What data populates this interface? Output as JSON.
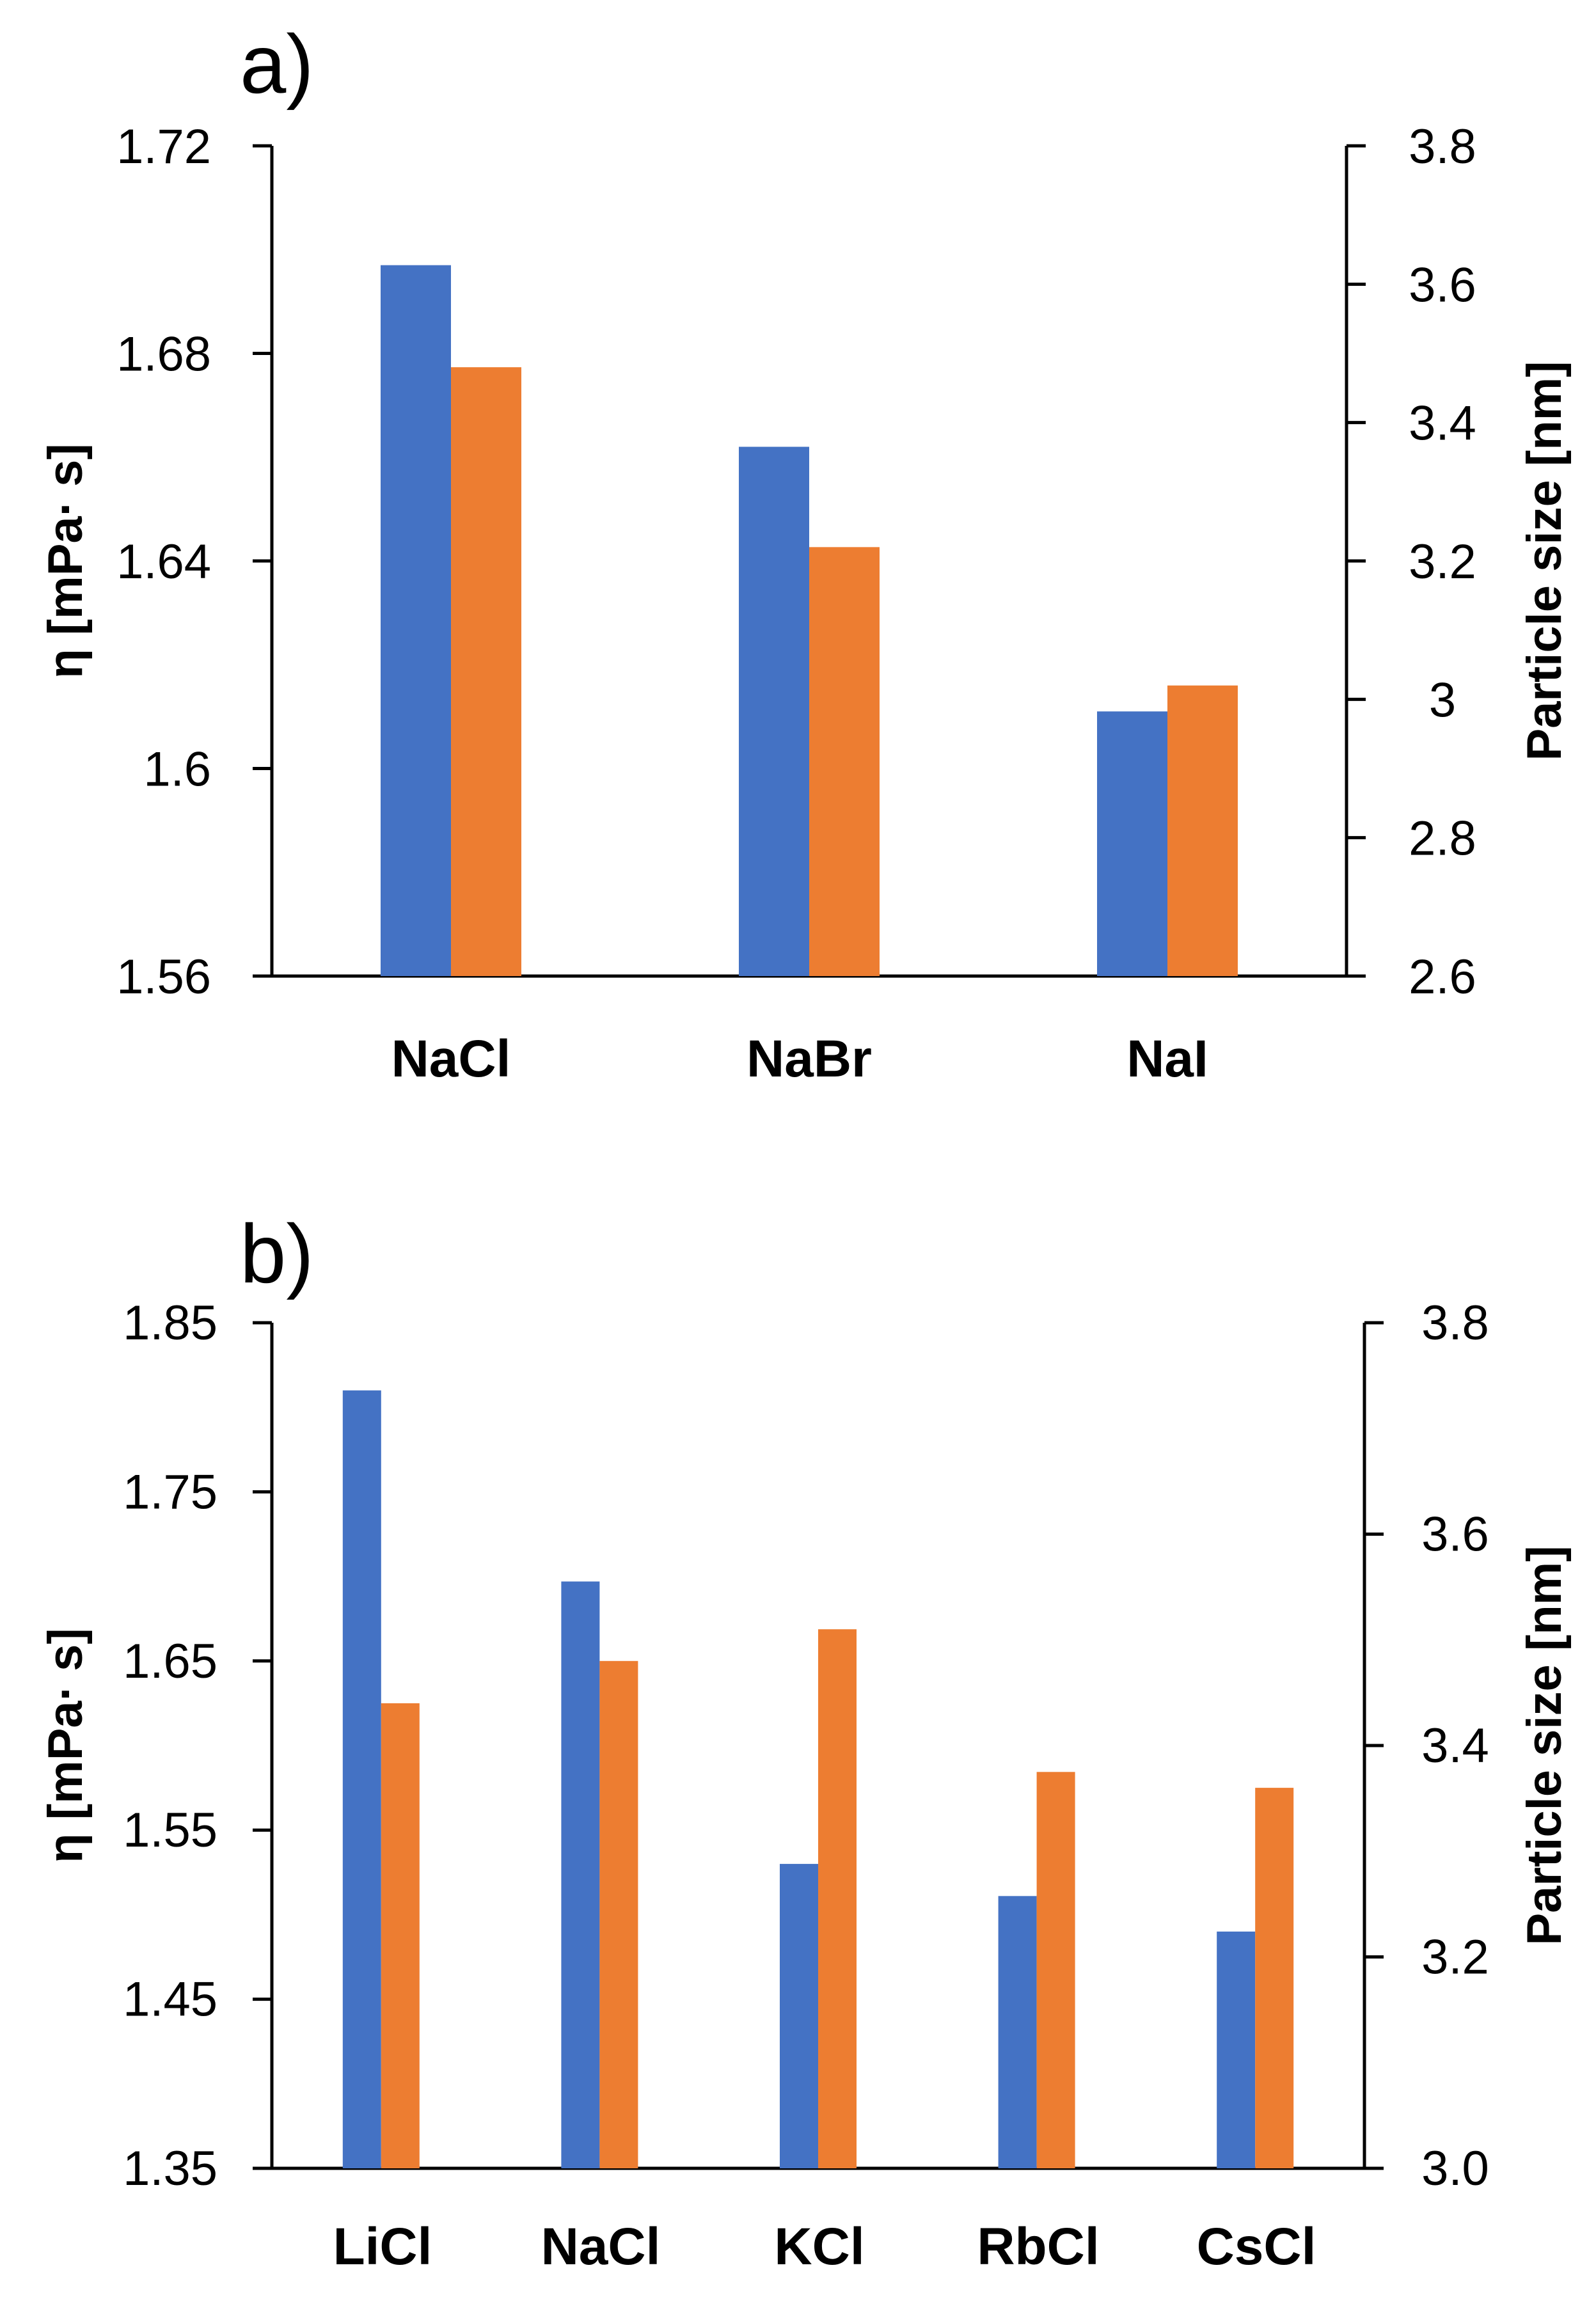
{
  "chart_data": [
    {
      "type": "bar",
      "panel_label": "a)",
      "categories": [
        "NaCl",
        "NaBr",
        "NaI"
      ],
      "series": [
        {
          "name": "η",
          "axis": "left",
          "color": "#4472C4",
          "values": [
            1.697,
            1.662,
            1.611
          ]
        },
        {
          "name": "Particle size",
          "axis": "right",
          "color": "#ED7D31",
          "values": [
            3.48,
            3.22,
            3.02
          ]
        }
      ],
      "ylabel": "η [mPa· s]",
      "ylabel_right": "Particle size [nm]",
      "ylim": [
        1.56,
        1.72
      ],
      "yticks": [
        "1.56",
        "1.6",
        "1.64",
        "1.68",
        "1.72"
      ],
      "ylim_right": [
        2.6,
        3.8
      ],
      "yticks_right": [
        "2.6",
        "2.8",
        "3",
        "3.2",
        "3.4",
        "3.6",
        "3.8"
      ],
      "grid": false,
      "legend": "none"
    },
    {
      "type": "bar",
      "panel_label": "b)",
      "categories": [
        "LiCl",
        "NaCl",
        "KCl",
        "RbCl",
        "CsCl"
      ],
      "series": [
        {
          "name": "η",
          "axis": "left",
          "color": "#4472C4",
          "values": [
            1.81,
            1.697,
            1.53,
            1.511,
            1.49
          ]
        },
        {
          "name": "Particle size",
          "axis": "right",
          "color": "#ED7D31",
          "values": [
            3.44,
            3.48,
            3.51,
            3.375,
            3.36
          ]
        }
      ],
      "ylabel": "η [mPa· s]",
      "ylabel_right": "Particle size [nm]",
      "ylim": [
        1.35,
        1.85
      ],
      "yticks": [
        "1.35",
        "1.45",
        "1.55",
        "1.65",
        "1.75",
        "1.85"
      ],
      "ylim_right": [
        3.0,
        3.8
      ],
      "yticks_right": [
        "3.0",
        "3.2",
        "3.4",
        "3.6",
        "3.8"
      ],
      "grid": false,
      "legend": "none"
    }
  ]
}
